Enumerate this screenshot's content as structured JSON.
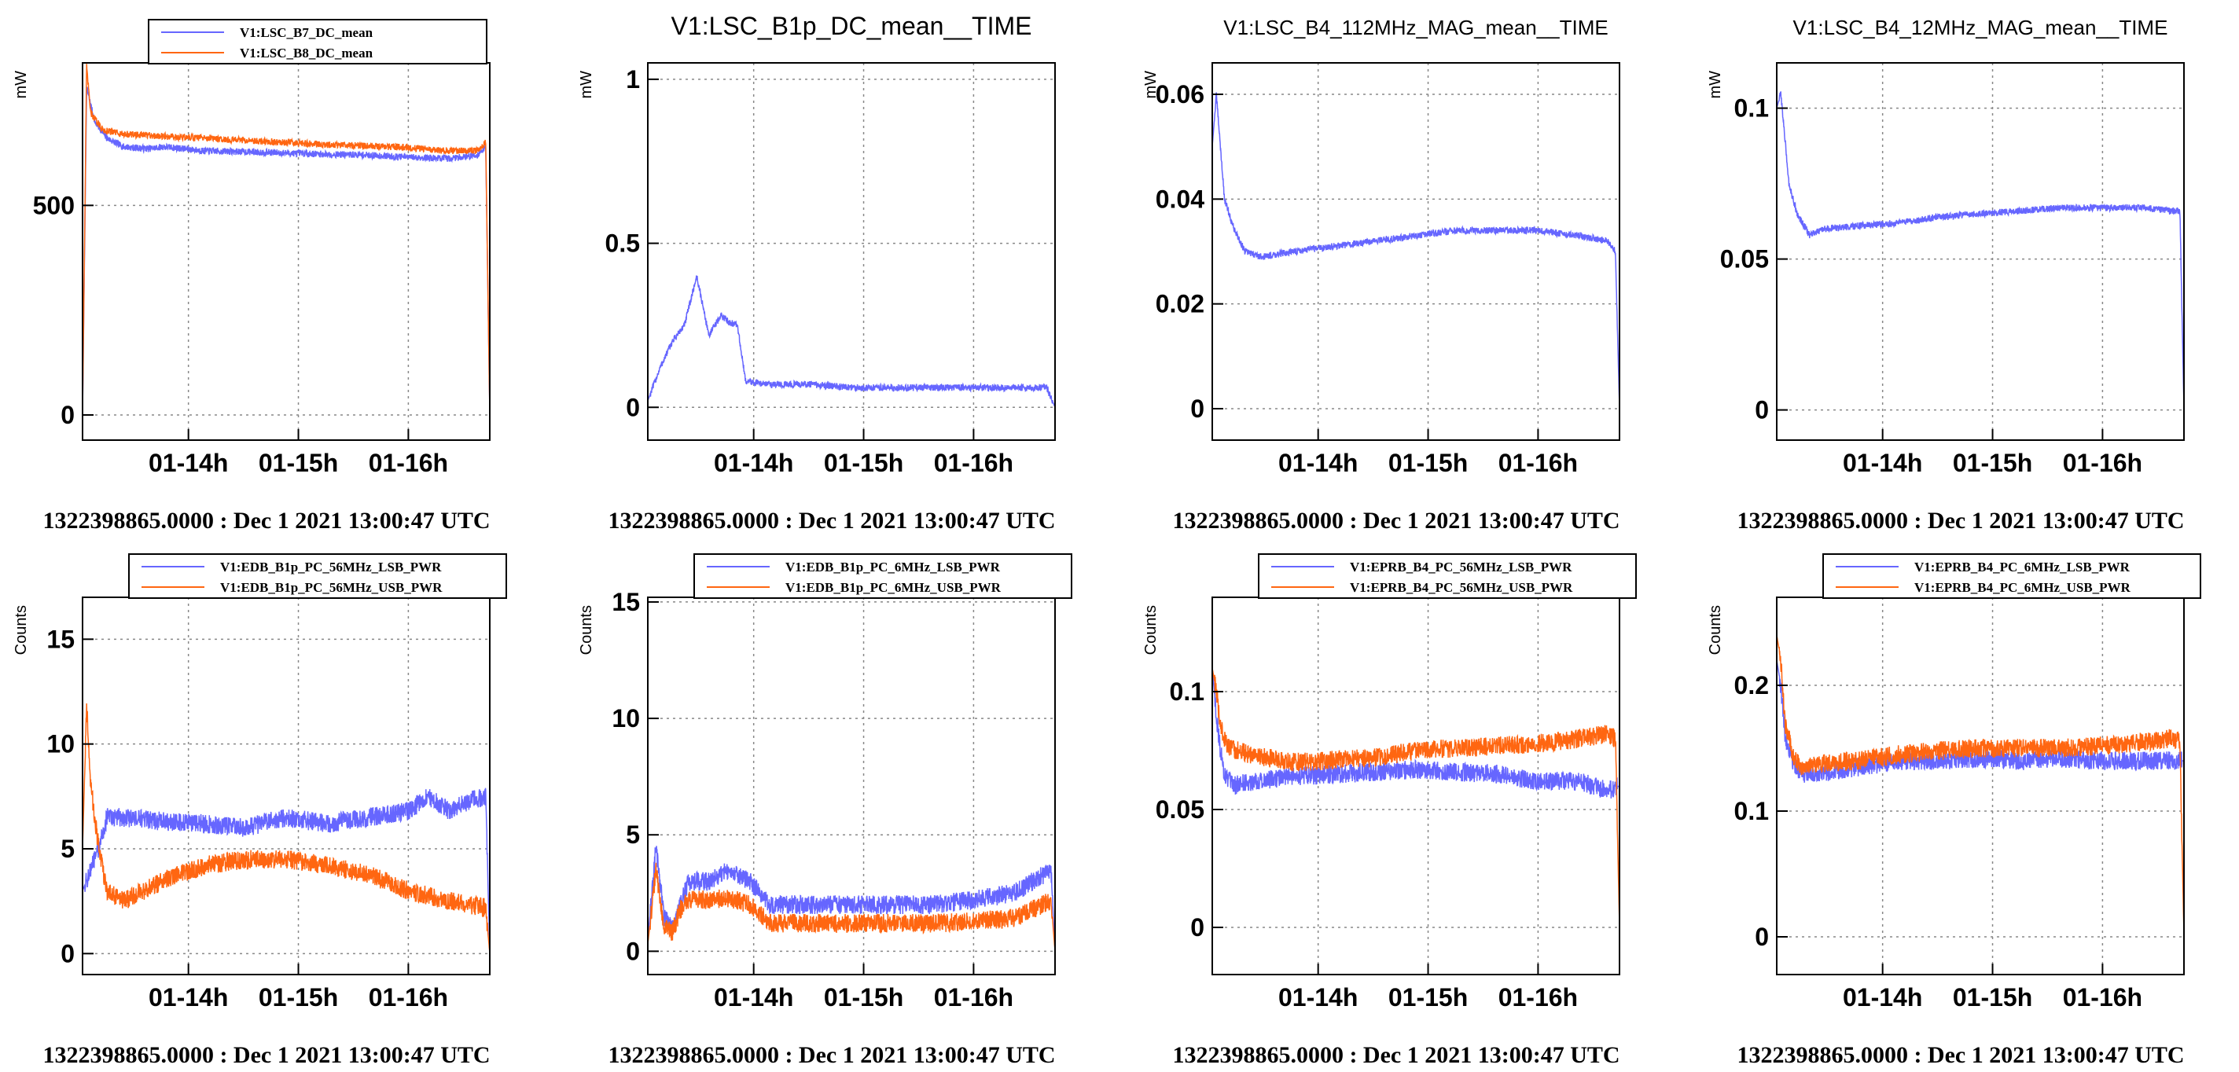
{
  "colors": {
    "series_a": "#6666ff",
    "series_b": "#ff6611",
    "grid": "#888888",
    "frame": "#000000"
  },
  "footer_text": "1322398865.0000 : Dec  1 2021 13:00:47 UTC",
  "chart_data": [
    {
      "type": "line",
      "title": "",
      "ylabel": "mW",
      "xlabels": [
        "01-14h",
        "01-15h",
        "01-16h"
      ],
      "ylim": [
        -60,
        840
      ],
      "yticks": [
        0,
        500
      ],
      "legend": "top",
      "series": [
        {
          "name": "V1:LSC_B7_DC_mean",
          "x": [
            0.0,
            0.01,
            0.03,
            0.06,
            0.1,
            0.16,
            0.2,
            0.3,
            0.4,
            0.5,
            0.6,
            0.7,
            0.8,
            0.9,
            0.97,
            0.99,
            1.0
          ],
          "y": [
            0,
            780,
            700,
            660,
            640,
            635,
            640,
            630,
            628,
            625,
            622,
            620,
            615,
            612,
            620,
            640,
            0
          ]
        },
        {
          "name": "V1:LSC_B8_DC_mean",
          "x": [
            0.0,
            0.01,
            0.02,
            0.05,
            0.1,
            0.2,
            0.3,
            0.4,
            0.5,
            0.6,
            0.7,
            0.8,
            0.9,
            0.97,
            0.99,
            1.0
          ],
          "y": [
            0,
            830,
            720,
            680,
            670,
            665,
            660,
            655,
            650,
            645,
            642,
            638,
            630,
            630,
            650,
            0
          ]
        }
      ]
    },
    {
      "type": "line",
      "title": "V1:LSC_B1p_DC_mean__TIME",
      "ylabel": "mW",
      "xlabels": [
        "01-14h",
        "01-15h",
        "01-16h"
      ],
      "ylim": [
        -0.1,
        1.05
      ],
      "yticks": [
        0,
        0.5,
        1
      ],
      "series": [
        {
          "name": "",
          "x": [
            0.0,
            0.03,
            0.06,
            0.09,
            0.1,
            0.12,
            0.15,
            0.18,
            0.2,
            0.22,
            0.24,
            0.3,
            0.4,
            0.5,
            0.6,
            0.7,
            0.8,
            0.9,
            0.98,
            1.0
          ],
          "y": [
            0.02,
            0.12,
            0.2,
            0.25,
            0.3,
            0.4,
            0.22,
            0.28,
            0.26,
            0.25,
            0.08,
            0.07,
            0.07,
            0.06,
            0.06,
            0.06,
            0.06,
            0.06,
            0.06,
            0.0
          ]
        }
      ]
    },
    {
      "type": "line",
      "title": "V1:LSC_B4_112MHz_MAG_mean__TIME",
      "ylabel": "mW",
      "xlabels": [
        "01-14h",
        "01-15h",
        "01-16h"
      ],
      "ylim": [
        -0.006,
        0.066
      ],
      "yticks": [
        0,
        0.02,
        0.04,
        0.06
      ],
      "series": [
        {
          "name": "",
          "x": [
            0.0,
            0.01,
            0.03,
            0.05,
            0.08,
            0.12,
            0.2,
            0.3,
            0.4,
            0.5,
            0.6,
            0.7,
            0.8,
            0.9,
            0.97,
            0.99,
            1.0
          ],
          "y": [
            0.05,
            0.06,
            0.04,
            0.035,
            0.03,
            0.029,
            0.03,
            0.031,
            0.032,
            0.033,
            0.034,
            0.034,
            0.034,
            0.033,
            0.032,
            0.03,
            0.0
          ]
        }
      ]
    },
    {
      "type": "line",
      "title": "V1:LSC_B4_12MHz_MAG_mean__TIME",
      "ylabel": "mW",
      "xlabels": [
        "01-14h",
        "01-15h",
        "01-16h"
      ],
      "ylim": [
        -0.01,
        0.115
      ],
      "yticks": [
        0,
        0.05,
        0.1
      ],
      "series": [
        {
          "name": "",
          "x": [
            0.0,
            0.01,
            0.03,
            0.05,
            0.08,
            0.12,
            0.2,
            0.3,
            0.4,
            0.5,
            0.6,
            0.7,
            0.8,
            0.9,
            0.97,
            0.99,
            1.0
          ],
          "y": [
            0.1,
            0.105,
            0.075,
            0.065,
            0.058,
            0.06,
            0.061,
            0.062,
            0.064,
            0.065,
            0.066,
            0.067,
            0.067,
            0.067,
            0.066,
            0.066,
            0.0
          ]
        }
      ]
    },
    {
      "type": "line",
      "title": "",
      "ylabel": "Counts",
      "xlabels": [
        "01-14h",
        "01-15h",
        "01-16h"
      ],
      "ylim": [
        -1,
        17
      ],
      "yticks": [
        0,
        5,
        10,
        15
      ],
      "legend": "top",
      "series": [
        {
          "name": "V1:EDB_B1p_PC_56MHz_LSB_PWR",
          "x": [
            0.0,
            0.02,
            0.04,
            0.06,
            0.1,
            0.2,
            0.3,
            0.4,
            0.5,
            0.6,
            0.7,
            0.8,
            0.85,
            0.9,
            0.95,
            0.99,
            1.0
          ],
          "y": [
            3,
            4,
            5,
            6.5,
            6.5,
            6.3,
            6.2,
            6.0,
            6.5,
            6.2,
            6.5,
            6.8,
            7.5,
            6.8,
            7.3,
            7.5,
            0
          ]
        },
        {
          "name": "V1:EDB_B1p_PC_56MHz_USB_PWR",
          "x": [
            0.0,
            0.01,
            0.02,
            0.04,
            0.06,
            0.1,
            0.15,
            0.2,
            0.3,
            0.4,
            0.5,
            0.6,
            0.7,
            0.8,
            0.9,
            0.99,
            1.0
          ],
          "y": [
            5,
            12,
            8,
            5,
            3,
            2.5,
            3,
            3.5,
            4.2,
            4.5,
            4.5,
            4.2,
            3.8,
            3.0,
            2.5,
            2.2,
            0
          ]
        }
      ]
    },
    {
      "type": "line",
      "title": "",
      "ylabel": "Counts",
      "xlabels": [
        "01-14h",
        "01-15h",
        "01-16h"
      ],
      "ylim": [
        -1,
        15.2
      ],
      "yticks": [
        0,
        5,
        10,
        15
      ],
      "legend": "top",
      "series": [
        {
          "name": "V1:EDB_B1p_PC_6MHz_LSB_PWR",
          "x": [
            0.0,
            0.02,
            0.04,
            0.06,
            0.08,
            0.1,
            0.15,
            0.2,
            0.25,
            0.3,
            0.4,
            0.5,
            0.6,
            0.7,
            0.8,
            0.9,
            0.99,
            1.0
          ],
          "y": [
            0.5,
            4.5,
            1.5,
            1.0,
            2.0,
            3.0,
            3.0,
            3.5,
            3.0,
            2.0,
            2.0,
            2.0,
            2.0,
            2.0,
            2.2,
            2.5,
            3.5,
            0
          ]
        },
        {
          "name": "V1:EDB_B1p_PC_6MHz_USB_PWR",
          "x": [
            0.0,
            0.02,
            0.04,
            0.06,
            0.08,
            0.1,
            0.15,
            0.2,
            0.25,
            0.3,
            0.4,
            0.5,
            0.6,
            0.7,
            0.8,
            0.9,
            0.99,
            1.0
          ],
          "y": [
            0.3,
            3.5,
            1.0,
            0.8,
            1.8,
            2.2,
            2.2,
            2.3,
            2.0,
            1.2,
            1.2,
            1.2,
            1.2,
            1.2,
            1.3,
            1.4,
            2.2,
            0
          ]
        }
      ]
    },
    {
      "type": "line",
      "title": "",
      "ylabel": "Counts",
      "xlabels": [
        "01-14h",
        "01-15h",
        "01-16h"
      ],
      "ylim": [
        -0.02,
        0.14
      ],
      "yticks": [
        0,
        0.05,
        0.1
      ],
      "legend": "top",
      "series": [
        {
          "name": "V1:EPRB_B4_PC_56MHz_LSB_PWR",
          "x": [
            0.0,
            0.01,
            0.02,
            0.03,
            0.05,
            0.1,
            0.2,
            0.3,
            0.4,
            0.5,
            0.6,
            0.7,
            0.8,
            0.9,
            0.97,
            1.0
          ],
          "y": [
            0.11,
            0.09,
            0.075,
            0.065,
            0.06,
            0.062,
            0.064,
            0.065,
            0.066,
            0.067,
            0.066,
            0.065,
            0.062,
            0.062,
            0.058,
            0.06
          ]
        },
        {
          "name": "V1:EPRB_B4_PC_56MHz_USB_PWR",
          "x": [
            0.0,
            0.01,
            0.02,
            0.04,
            0.1,
            0.2,
            0.3,
            0.4,
            0.5,
            0.6,
            0.7,
            0.8,
            0.9,
            0.97,
            0.99,
            1.0
          ],
          "y": [
            0.11,
            0.1,
            0.085,
            0.076,
            0.073,
            0.07,
            0.071,
            0.072,
            0.075,
            0.076,
            0.077,
            0.078,
            0.08,
            0.082,
            0.08,
            0.0
          ]
        }
      ]
    },
    {
      "type": "line",
      "title": "",
      "ylabel": "Counts",
      "xlabels": [
        "01-14h",
        "01-15h",
        "01-16h"
      ],
      "ylim": [
        -0.03,
        0.27
      ],
      "yticks": [
        0,
        0.1,
        0.2
      ],
      "legend": "top",
      "series": [
        {
          "name": "V1:EPRB_B4_PC_6MHz_LSB_PWR",
          "x": [
            0.0,
            0.01,
            0.02,
            0.04,
            0.06,
            0.1,
            0.2,
            0.3,
            0.4,
            0.5,
            0.6,
            0.7,
            0.8,
            0.9,
            0.97,
            1.0
          ],
          "y": [
            0.22,
            0.2,
            0.16,
            0.14,
            0.13,
            0.13,
            0.135,
            0.14,
            0.14,
            0.142,
            0.14,
            0.142,
            0.14,
            0.14,
            0.14,
            0.14
          ]
        },
        {
          "name": "V1:EPRB_B4_PC_6MHz_USB_PWR",
          "x": [
            0.0,
            0.01,
            0.02,
            0.04,
            0.06,
            0.1,
            0.2,
            0.3,
            0.4,
            0.5,
            0.6,
            0.7,
            0.8,
            0.9,
            0.97,
            0.99,
            1.0
          ],
          "y": [
            0.24,
            0.22,
            0.17,
            0.145,
            0.135,
            0.138,
            0.14,
            0.145,
            0.148,
            0.15,
            0.15,
            0.15,
            0.152,
            0.155,
            0.158,
            0.155,
            0.0
          ]
        }
      ]
    }
  ]
}
